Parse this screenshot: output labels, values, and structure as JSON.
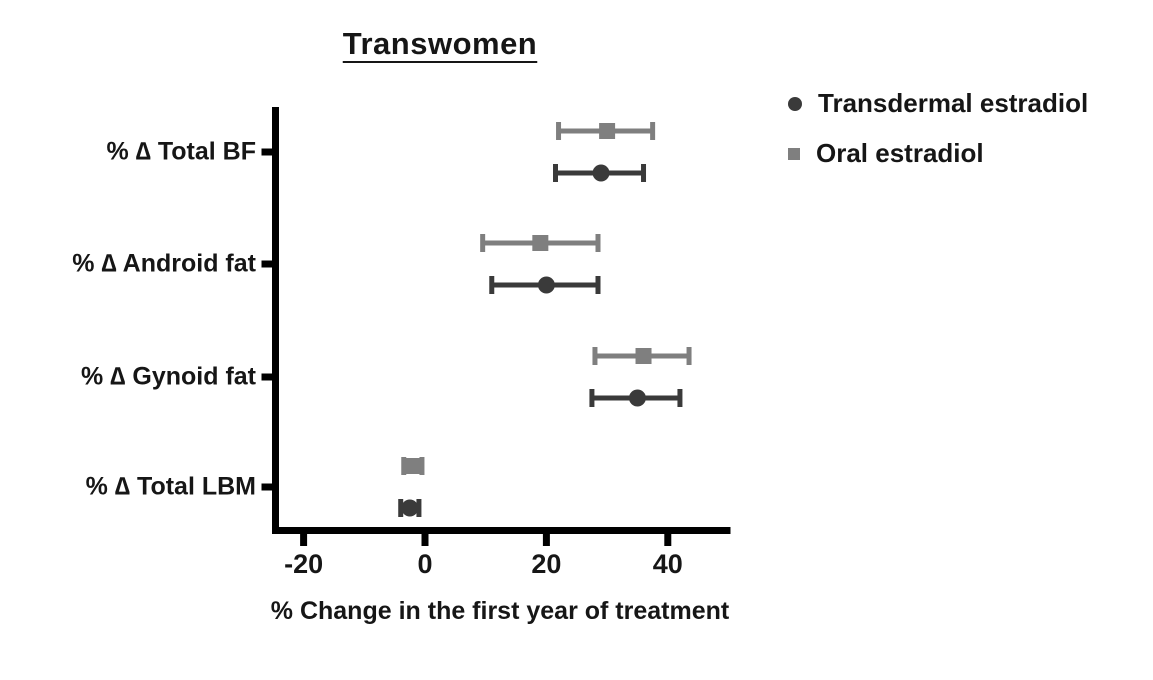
{
  "chart_data": {
    "type": "scatter",
    "subtype": "horizontal point-range forest plot with error bars",
    "title": "Transwomen",
    "xlabel": "% Change in the first year of treatment",
    "ylabel": "",
    "categories": [
      "% ∆ Total BF",
      "% ∆ Android fat",
      "% ∆ Gynoid fat",
      "% ∆ Total LBM"
    ],
    "xlim": [
      -25,
      50
    ],
    "xticks": [
      -20,
      0,
      20,
      40
    ],
    "grid": false,
    "legend_position": "top-right",
    "row_order_top_to_bottom": [
      "Oral estradiol",
      "Transdermal estradiol"
    ],
    "series": [
      {
        "name": "Transdermal estradiol",
        "marker": "circle",
        "color": "#3a3a3a",
        "values": [
          29,
          20,
          35,
          -2.5
        ],
        "ci_low": [
          21.5,
          11,
          27.5,
          -4
        ],
        "ci_high": [
          36,
          28.5,
          42,
          -1
        ]
      },
      {
        "name": "Oral estradiol",
        "marker": "square",
        "color": "#7f7f7f",
        "values": [
          30,
          19,
          36,
          -2
        ],
        "ci_low": [
          22,
          9.5,
          28,
          -3.5
        ],
        "ci_high": [
          37.5,
          28.5,
          43.5,
          -0.5
        ]
      }
    ],
    "axis_color": "#000000",
    "text_color": "#161616"
  }
}
